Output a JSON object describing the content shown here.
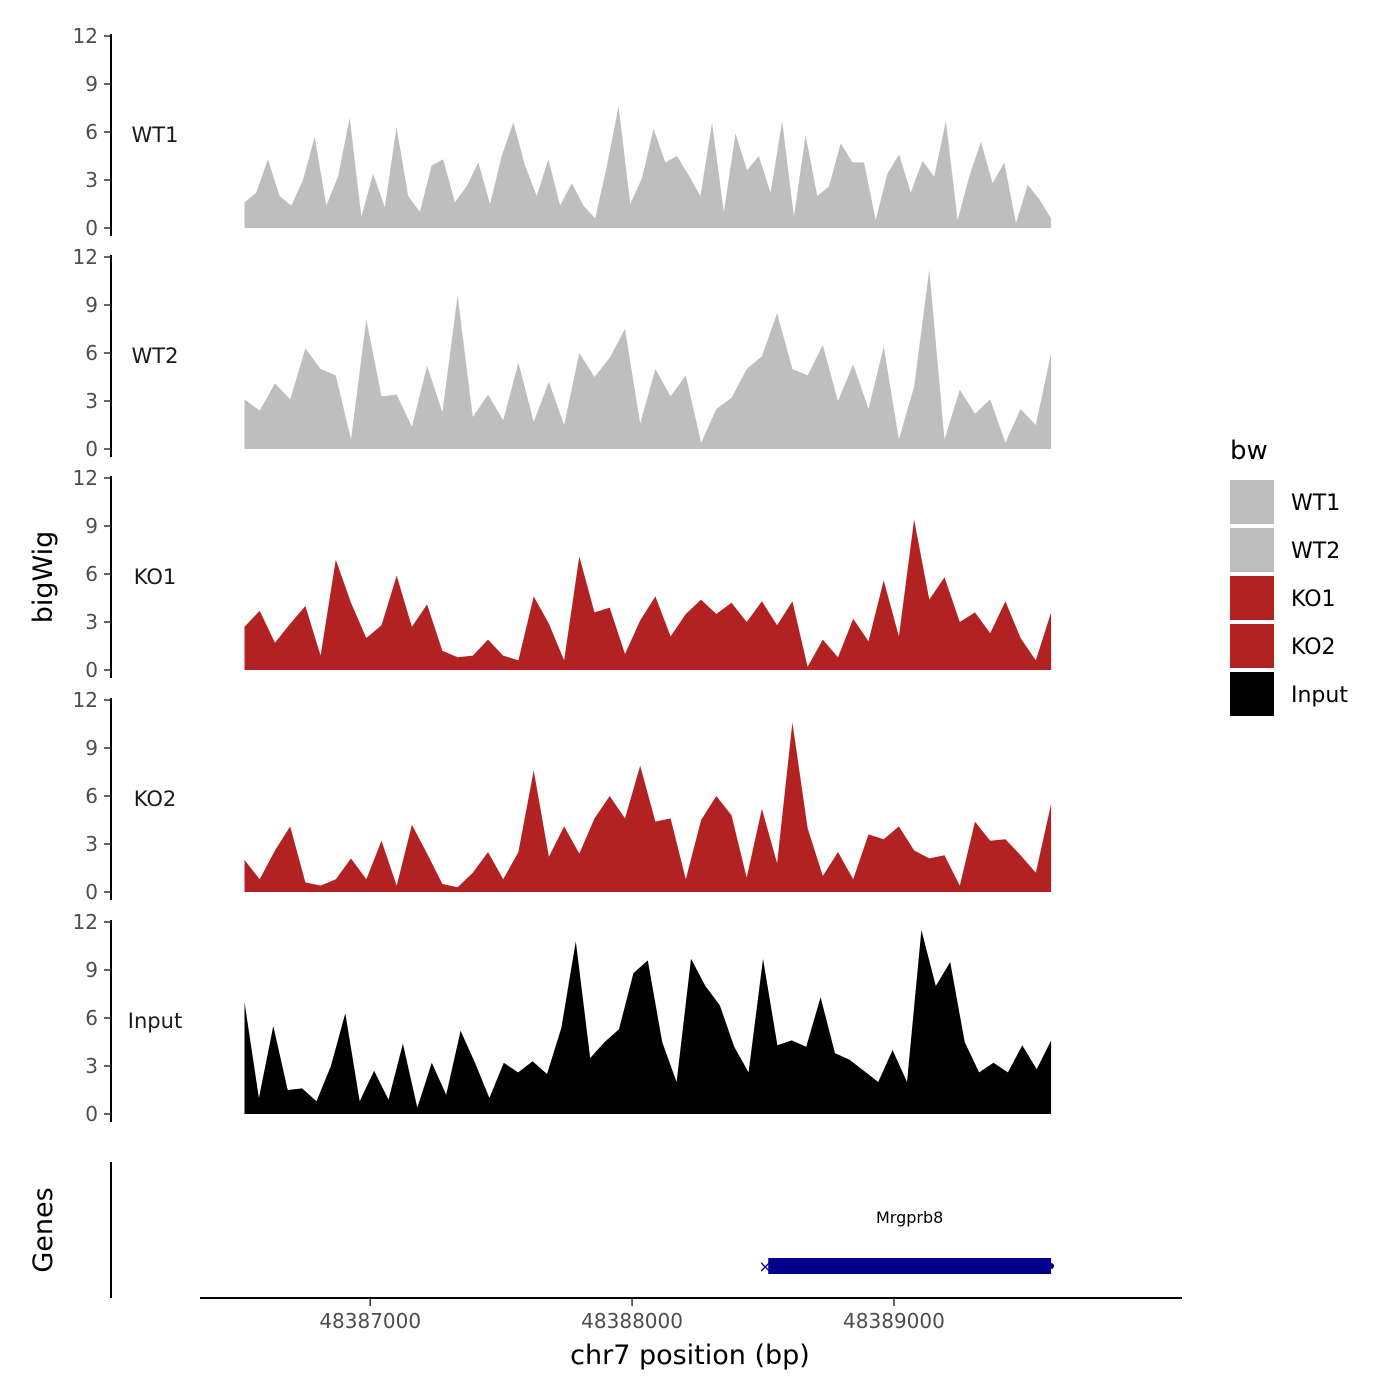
{
  "chart_data": {
    "type": "area",
    "ylabel": "bigWig",
    "xlabel": "chr7 position (bp)",
    "ylim": [
      0,
      12
    ],
    "yticks": [
      0,
      3,
      6,
      9,
      12
    ],
    "xlim": [
      48386350,
      48390100
    ],
    "xticks": [
      48387000,
      48388000,
      48389000
    ],
    "xtick_labels": [
      "48387000",
      "48388000",
      "48389000"
    ],
    "x_start": 48386520,
    "x_end": 48389600,
    "genes_label": "Genes",
    "legend": {
      "title": "bw",
      "items": [
        {
          "label": "WT1",
          "color": "#bebebe"
        },
        {
          "label": "WT2",
          "color": "#bebebe"
        },
        {
          "label": "KO1",
          "color": "#b22222"
        },
        {
          "label": "KO2",
          "color": "#b22222"
        },
        {
          "label": "Input",
          "color": "#000000"
        }
      ]
    },
    "tracks": [
      {
        "name": "WT1",
        "color": "#bebebe",
        "values": [
          1.6,
          2.2,
          4.3,
          2.0,
          1.4,
          3.0,
          5.7,
          1.4,
          3.2,
          6.9,
          0.7,
          3.4,
          1.3,
          6.3,
          2.0,
          1.0,
          3.9,
          4.3,
          1.6,
          2.6,
          4.1,
          1.5,
          4.5,
          6.6,
          3.9,
          2.0,
          4.3,
          1.4,
          2.8,
          1.4,
          0.6,
          3.9,
          7.6,
          1.5,
          3.1,
          6.2,
          4.1,
          4.5,
          3.3,
          2.0,
          6.6,
          1.0,
          5.9,
          3.6,
          4.5,
          2.2,
          6.7,
          0.7,
          5.8,
          2.0,
          2.6,
          5.3,
          4.1,
          4.1,
          0.5,
          3.4,
          4.6,
          2.2,
          4.2,
          3.2,
          6.7,
          0.5,
          3.2,
          5.4,
          2.8,
          4.1,
          0.3,
          2.7,
          1.8,
          0.6
        ]
      },
      {
        "name": "WT2",
        "color": "#bebebe",
        "values": [
          3.1,
          2.4,
          4.1,
          3.1,
          6.3,
          5.0,
          4.6,
          0.6,
          8.1,
          3.3,
          3.4,
          1.4,
          5.2,
          2.3,
          9.6,
          2.0,
          3.4,
          1.8,
          5.4,
          1.7,
          4.2,
          1.5,
          6.0,
          4.5,
          5.7,
          7.5,
          1.6,
          5.0,
          3.3,
          4.6,
          0.4,
          2.5,
          3.2,
          5.0,
          5.8,
          8.5,
          5.0,
          4.6,
          6.5,
          3.0,
          5.3,
          2.5,
          6.4,
          0.6,
          3.9,
          11.2,
          0.6,
          3.7,
          2.2,
          3.1,
          0.4,
          2.5,
          1.5,
          6.0
        ]
      },
      {
        "name": "KO1",
        "color": "#b22222",
        "values": [
          2.7,
          3.7,
          1.7,
          2.9,
          4.0,
          0.9,
          6.9,
          4.2,
          2.0,
          2.8,
          5.9,
          2.7,
          4.1,
          1.2,
          0.8,
          0.9,
          1.9,
          0.9,
          0.6,
          4.6,
          2.9,
          0.6,
          7.1,
          3.6,
          3.9,
          1.0,
          3.1,
          4.6,
          2.1,
          3.5,
          4.4,
          3.5,
          4.2,
          3.0,
          4.3,
          2.8,
          4.3,
          0.2,
          1.9,
          0.8,
          3.2,
          1.8,
          5.6,
          2.1,
          9.4,
          4.4,
          5.8,
          3.0,
          3.6,
          2.3,
          4.3,
          2.0,
          0.6,
          3.6
        ]
      },
      {
        "name": "KO2",
        "color": "#b22222",
        "values": [
          2.0,
          0.8,
          2.6,
          4.1,
          0.6,
          0.4,
          0.8,
          2.1,
          0.8,
          3.2,
          0.4,
          4.2,
          2.4,
          0.5,
          0.3,
          1.2,
          2.5,
          0.8,
          2.5,
          7.6,
          2.2,
          4.1,
          2.4,
          4.6,
          6.0,
          4.6,
          7.9,
          4.4,
          4.6,
          0.8,
          4.5,
          6.0,
          4.8,
          0.9,
          5.2,
          1.8,
          10.6,
          4.0,
          1.0,
          2.5,
          0.8,
          3.6,
          3.3,
          4.1,
          2.6,
          2.1,
          2.3,
          0.4,
          4.4,
          3.2,
          3.3,
          2.3,
          1.2,
          5.5
        ]
      },
      {
        "name": "Input",
        "color": "#000000",
        "values": [
          7.0,
          1.0,
          5.5,
          1.5,
          1.6,
          0.8,
          3.0,
          6.3,
          0.8,
          2.7,
          0.9,
          4.4,
          0.4,
          3.2,
          1.2,
          5.2,
          3.2,
          1.0,
          3.2,
          2.6,
          3.3,
          2.5,
          5.4,
          10.8,
          3.5,
          4.5,
          5.3,
          8.8,
          9.6,
          4.5,
          2.0,
          9.7,
          8.0,
          6.8,
          4.2,
          2.6,
          9.7,
          4.3,
          4.6,
          4.2,
          7.3,
          3.8,
          3.4,
          2.7,
          2.0,
          4.0,
          2.0,
          11.5,
          8.0,
          9.5,
          4.5,
          2.6,
          3.2,
          2.6,
          4.3,
          2.8,
          4.6
        ]
      }
    ],
    "gene": {
      "name": "Mrgprb8",
      "start": 48388520,
      "end": 48389600,
      "color": "#00008b",
      "strand": "-"
    }
  }
}
